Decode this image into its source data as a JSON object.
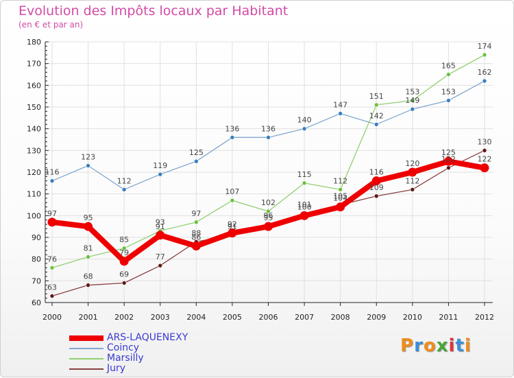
{
  "header": {
    "title": "Evolution des Impôts locaux par Habitant",
    "subtitle": "(en € et par an)"
  },
  "logo": {
    "text": "Proxiti",
    "colors": [
      "#f08c1a",
      "#3a8fd8",
      "#f08c1a",
      "#4aa53a",
      "#e0343a",
      "#3a8fd8",
      "#f08c1a"
    ]
  },
  "colors": {
    "title": "#d14aa6",
    "legend_text": "#3a3ad0",
    "grid": "#e0e0e0",
    "axis": "#222222"
  },
  "chart_data": {
    "type": "line",
    "title": "Evolution des Impôts locaux par Habitant",
    "subtitle": "(en € et par an)",
    "xlabel": "",
    "ylabel": "",
    "ylim": [
      60,
      180
    ],
    "yticks": [
      60,
      70,
      80,
      90,
      100,
      110,
      120,
      130,
      140,
      150,
      160,
      170,
      180
    ],
    "grid": true,
    "legend_position": "bottom-left",
    "x": [
      "2000",
      "2001",
      "2002",
      "2003",
      "2004",
      "2005",
      "2006",
      "2007",
      "2008",
      "2009",
      "2010",
      "2011",
      "2012"
    ],
    "series": [
      {
        "name": "ARS-LAQUENEXY",
        "color": "#ee0000",
        "marker": "#ee0000",
        "width": 8,
        "radius": 6.5,
        "values": [
          97,
          95,
          79,
          91,
          86,
          92,
          95,
          100,
          104,
          116,
          120,
          125,
          122
        ]
      },
      {
        "name": "Coincy",
        "color": "#80a8d0",
        "marker": "#3a7fc0",
        "width": 1.3,
        "radius": 3,
        "values": [
          116,
          123,
          112,
          119,
          125,
          136,
          136,
          140,
          147,
          142,
          149,
          153,
          162
        ]
      },
      {
        "name": "Marsilly",
        "color": "#90d070",
        "marker": "#6cc040",
        "width": 1.3,
        "radius": 3,
        "values": [
          76,
          81,
          85,
          93,
          97,
          107,
          102,
          115,
          112,
          151,
          153,
          165,
          174
        ]
      },
      {
        "name": "Jury",
        "color": "#8a4040",
        "marker": "#601818",
        "width": 1.3,
        "radius": 3,
        "values": [
          63,
          68,
          69,
          77,
          88,
          91,
          96,
          101,
          105,
          109,
          112,
          122,
          130
        ]
      }
    ]
  }
}
